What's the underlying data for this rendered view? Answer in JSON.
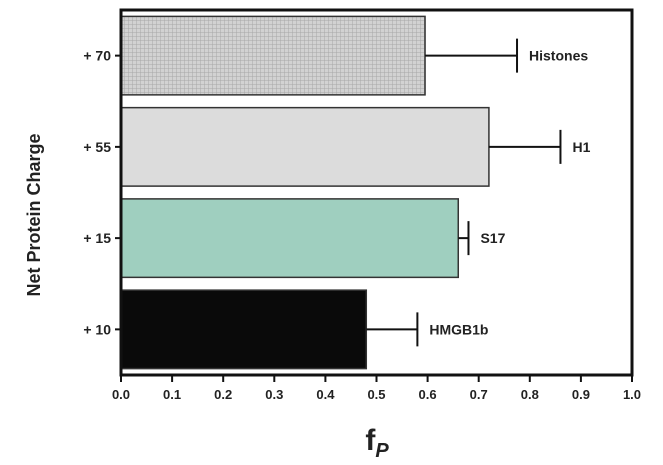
{
  "chart_data": {
    "type": "bar",
    "orientation": "horizontal",
    "ylabel": "Net Protein Charge",
    "xlabel_main": "f",
    "xlabel_sub": "P",
    "xlim": [
      0.0,
      1.0
    ],
    "xticks": [
      "0.0",
      "0.1",
      "0.2",
      "0.3",
      "0.4",
      "0.5",
      "0.6",
      "0.7",
      "0.8",
      "0.9",
      "1.0"
    ],
    "grid": false,
    "legend": "none",
    "bars": [
      {
        "category": "+ 70",
        "label": "Histones",
        "value": 0.595,
        "error": 0.18,
        "color": "#c8c8c8",
        "pattern": "grid"
      },
      {
        "category": "+ 55",
        "label": "H1",
        "value": 0.72,
        "error": 0.14,
        "color": "#dcdcdc",
        "pattern": "none"
      },
      {
        "category": "+ 15",
        "label": "S17",
        "value": 0.66,
        "error": 0.02,
        "color": "#9fcfbf",
        "pattern": "none"
      },
      {
        "category": "+ 10",
        "label": "HMGB1b",
        "value": 0.48,
        "error": 0.1,
        "color": "#0a0a0a",
        "pattern": "none"
      }
    ]
  }
}
